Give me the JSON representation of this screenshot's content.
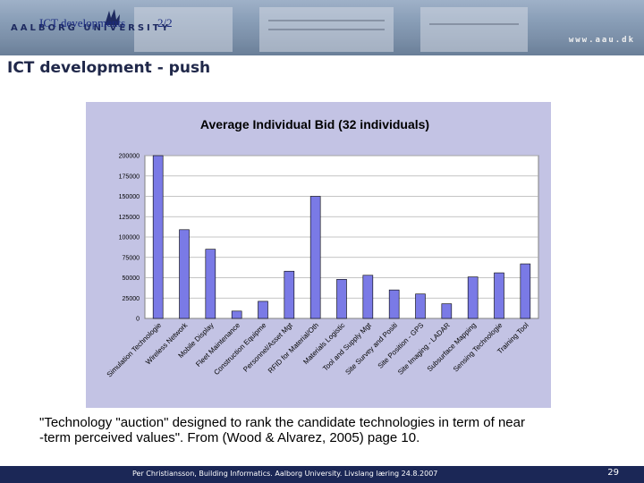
{
  "header": {
    "crumb": "ICT developments",
    "page_of": "2/2",
    "logo_text": "AALBORG UNIVERSITY",
    "site": "www.aau.dk"
  },
  "slide_title": "ICT development - push",
  "caption": "\"Technology \"auction\" designed to rank the candidate technologies in term of near\n-term perceived values\". From  (Wood & Alvarez, 2005) page 10.",
  "footer": {
    "text": "Per Christiansson, Building Informatics. Aalborg University.    Livslang læring 24.8.2007",
    "page": "29"
  },
  "colors": {
    "bar": "#7a7ae6",
    "plot_bg": "#ffffff",
    "frame_bg": "#c3c3e4",
    "footer_bg": "#1b2756"
  },
  "chart_data": {
    "type": "bar",
    "title": "Average Individual Bid (32 individuals)",
    "xlabel": "",
    "ylabel": "",
    "ylim": [
      0,
      200000
    ],
    "yticks": [
      0,
      25000,
      50000,
      75000,
      100000,
      125000,
      150000,
      175000,
      200000
    ],
    "grid": true,
    "legend": "none",
    "categories": [
      "Simulation Technologie",
      "Wireless Network",
      "Mobile Display",
      "Fleet Maintenance",
      "Construction Equipme",
      "Personnel/Asset Mgt",
      "RFID for Material/Oth",
      "Materials Logistic",
      "Tool and Supply Mgt",
      "Site Survey and Positi",
      "Site Position - GPS",
      "Site Imaging - LADAR",
      "Subsurface Mapping",
      "Sensing Technologie",
      "Training Tool"
    ],
    "values": [
      200000,
      109000,
      85000,
      9000,
      21000,
      58000,
      150000,
      48000,
      53000,
      35000,
      30000,
      18000,
      51000,
      56000,
      67000
    ]
  }
}
